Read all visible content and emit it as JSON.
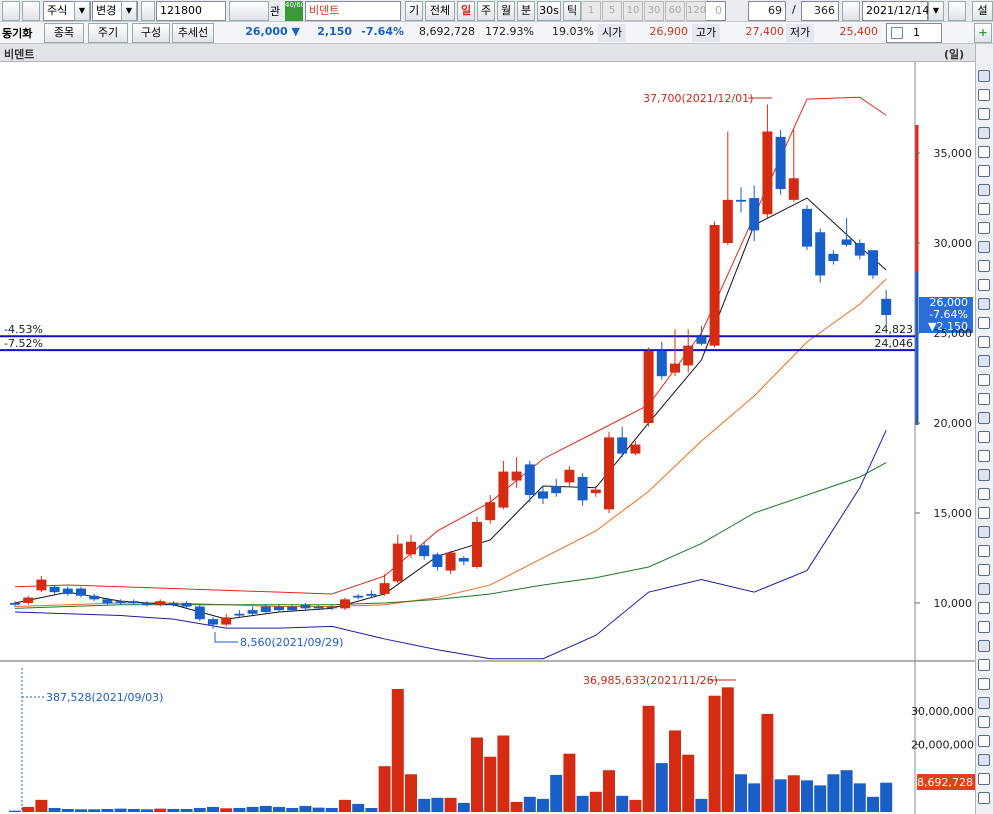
{
  "toolbar": {
    "market": "주식",
    "change": "변경",
    "code": "121800",
    "watch": "관",
    "badge": "40/60",
    "name": "비덴트",
    "periods": [
      "기",
      "전체",
      "일",
      "주",
      "월",
      "분",
      "30s",
      "틱"
    ],
    "minutes": [
      "1",
      "5",
      "10",
      "30",
      "60",
      "120"
    ],
    "offset": "0",
    "count": "69",
    "slash": "/",
    "total": "366",
    "date": "2021/12/14",
    "settings": "설"
  },
  "quote": {
    "sync": "동기화",
    "buttons": [
      "종목",
      "주기",
      "구성",
      "추세선"
    ],
    "price": "26,000 ▼",
    "diff": "2,150",
    "rate": "-7.64%",
    "volume": "8,692,728",
    "volume_ratio": "172.93%",
    "turnover": "19.03%",
    "open_label": "시가",
    "open": "26,900",
    "high_label": "고가",
    "high": "27,400",
    "low_label": "저가",
    "low": "25,400",
    "scale": "1"
  },
  "header": {
    "name": "비덴트",
    "period": "(일)"
  },
  "chart": {
    "ylim": [
      6830,
      40060
    ],
    "yticks": [
      {
        "value": 10000,
        "label": "10,000"
      },
      {
        "value": 15000,
        "label": "15,000"
      },
      {
        "value": 20000,
        "label": "20,000"
      },
      {
        "value": 25000,
        "label": "25,000"
      },
      {
        "value": 30000,
        "label": "30,000"
      },
      {
        "value": 35000,
        "label": "35,000"
      }
    ],
    "candles": {
      "open": [
        10000,
        10000,
        10700,
        10900,
        10800,
        10800,
        10400,
        10200,
        10100,
        10100,
        10000,
        9900,
        10000,
        10000,
        9800,
        9100,
        8800,
        9400,
        9600,
        9800,
        9800,
        9800,
        9900,
        9800,
        9800,
        9700,
        10400,
        10500,
        10500,
        11200,
        12700,
        13200,
        12700,
        11800,
        12500,
        12000,
        14600,
        15300,
        16800,
        17700,
        16200,
        16500,
        16700,
        17000,
        16100,
        15200,
        19200,
        18300,
        20000,
        24000,
        22800,
        23200,
        24800,
        24300,
        30000,
        32400,
        32500,
        31600,
        35900,
        32400,
        31900,
        30600,
        29400,
        30200,
        30000,
        29600,
        26900
      ],
      "high": [
        10100,
        10400,
        11500,
        11000,
        10900,
        10900,
        10500,
        10300,
        10200,
        10200,
        10100,
        10200,
        10100,
        10100,
        9900,
        9200,
        9400,
        9600,
        9800,
        9900,
        9900,
        9900,
        10000,
        9900,
        9900,
        10300,
        10500,
        10700,
        11600,
        13800,
        13800,
        13400,
        12800,
        12900,
        12600,
        14800,
        16000,
        17900,
        18100,
        17900,
        16500,
        16900,
        17600,
        17200,
        16500,
        19500,
        19800,
        19000,
        24200,
        24500,
        25200,
        25200,
        25400,
        31200,
        36200,
        33100,
        33200,
        37700,
        36300,
        36300,
        32100,
        30800,
        29600,
        31400,
        30200,
        29600,
        27400
      ],
      "low": [
        9800,
        9900,
        10600,
        10500,
        10400,
        10300,
        10100,
        9900,
        9900,
        9900,
        9800,
        9800,
        9800,
        9700,
        9000,
        8560,
        8700,
        9200,
        9300,
        9400,
        9500,
        9500,
        9600,
        9600,
        9600,
        9600,
        10200,
        10300,
        10400,
        11100,
        12500,
        12400,
        11800,
        11600,
        12100,
        11900,
        14400,
        15200,
        16400,
        15600,
        15500,
        15900,
        16500,
        15400,
        15900,
        15000,
        18100,
        18200,
        19800,
        22400,
        22600,
        22800,
        24300,
        24200,
        29900,
        31700,
        30100,
        31400,
        32700,
        32300,
        29600,
        27800,
        28800,
        29800,
        29100,
        28000,
        25400
      ],
      "close": [
        9900,
        10300,
        11300,
        10600,
        10500,
        10400,
        10200,
        10000,
        10000,
        10000,
        9900,
        10100,
        9900,
        9800,
        9100,
        8800,
        9200,
        9300,
        9400,
        9500,
        9600,
        9600,
        9700,
        9700,
        9700,
        10200,
        10300,
        10400,
        11100,
        13300,
        13400,
        12600,
        12000,
        12800,
        12300,
        14500,
        15600,
        17300,
        17300,
        16000,
        15800,
        16100,
        17400,
        15700,
        16300,
        19200,
        18300,
        18800,
        24000,
        22600,
        23300,
        24300,
        24400,
        31000,
        32400,
        32300,
        30700,
        36200,
        33000,
        33600,
        29800,
        28200,
        29000,
        29900,
        29300,
        28200,
        26000
      ]
    },
    "line_x": [
      0,
      4,
      8,
      12,
      16,
      20,
      24,
      28,
      32,
      36,
      40,
      44,
      48,
      52,
      56,
      60,
      64,
      66
    ],
    "lines": [
      {
        "color": "#e0281c",
        "values": [
          10900,
          11000,
          10900,
          10800,
          10700,
          10600,
          10500,
          11500,
          14000,
          15600,
          18000,
          19500,
          21000,
          25000,
          31500,
          38000,
          38100,
          37100
        ]
      },
      {
        "color": "#1c1ca8",
        "values": [
          9500,
          9400,
          9300,
          9100,
          8600,
          8600,
          8700,
          8000,
          7400,
          6900,
          6900,
          8200,
          10600,
          11300,
          10600,
          11800,
          16400,
          19600
        ]
      },
      {
        "color": "#f06a1e",
        "values": [
          9800,
          9900,
          10000,
          10000,
          9900,
          9800,
          9800,
          9900,
          10300,
          11000,
          12500,
          14000,
          16200,
          19000,
          21500,
          24500,
          26600,
          28000
        ]
      },
      {
        "color": "#1e7a28",
        "values": [
          9700,
          9800,
          9900,
          9900,
          9900,
          9900,
          9900,
          10000,
          10200,
          10500,
          11000,
          11400,
          12000,
          13300,
          15000,
          16000,
          17000,
          17800
        ]
      },
      {
        "color": "#111111",
        "values": [
          10000,
          10600,
          10100,
          9900,
          9100,
          9500,
          9700,
          10500,
          12600,
          13500,
          16500,
          16400,
          20000,
          23500,
          31000,
          32500,
          29800,
          28500
        ]
      }
    ],
    "levels": [
      {
        "value": 24823,
        "label": "24,823",
        "change": "-4.53%"
      },
      {
        "value": 24046,
        "label": "24,046",
        "change": "-7.52%"
      }
    ],
    "last": {
      "price": "26,000",
      "rate": "-7.64%",
      "diff": "▼2,150"
    },
    "annotations": {
      "high": "37,700(2021/12/01)",
      "low": "8,560(2021/09/29)",
      "volume_high": "36,985,633(2021/11/26)",
      "volume_low": "387,528(2021/09/03)"
    },
    "volume": {
      "ylim": [
        0,
        44500000
      ],
      "yticks": [
        {
          "value": 20000000,
          "label": "20,000,000"
        },
        {
          "value": 30000000,
          "label": "30,000,000"
        }
      ],
      "values": [
        387528,
        1500000,
        3600000,
        1200000,
        900000,
        800000,
        800000,
        900000,
        1000000,
        900000,
        800000,
        1000000,
        900000,
        900000,
        1200000,
        1500000,
        1100000,
        1200000,
        1500000,
        1800000,
        1500000,
        1200000,
        1800000,
        1300000,
        1200000,
        3600000,
        2400000,
        1200000,
        13600000,
        36500000,
        11200000,
        3900000,
        4200000,
        4200000,
        2700000,
        22100000,
        16400000,
        22700000,
        3000000,
        4500000,
        3900000,
        11000000,
        17300000,
        4800000,
        6000000,
        12400000,
        4800000,
        3600000,
        31500000,
        14500000,
        24200000,
        17000000,
        3900000,
        34500000,
        36985633,
        11200000,
        8500000,
        29100000,
        9700000,
        10900000,
        9400000,
        7900000,
        11200000,
        12400000,
        8500000,
        4500000,
        8692728
      ]
    }
  }
}
